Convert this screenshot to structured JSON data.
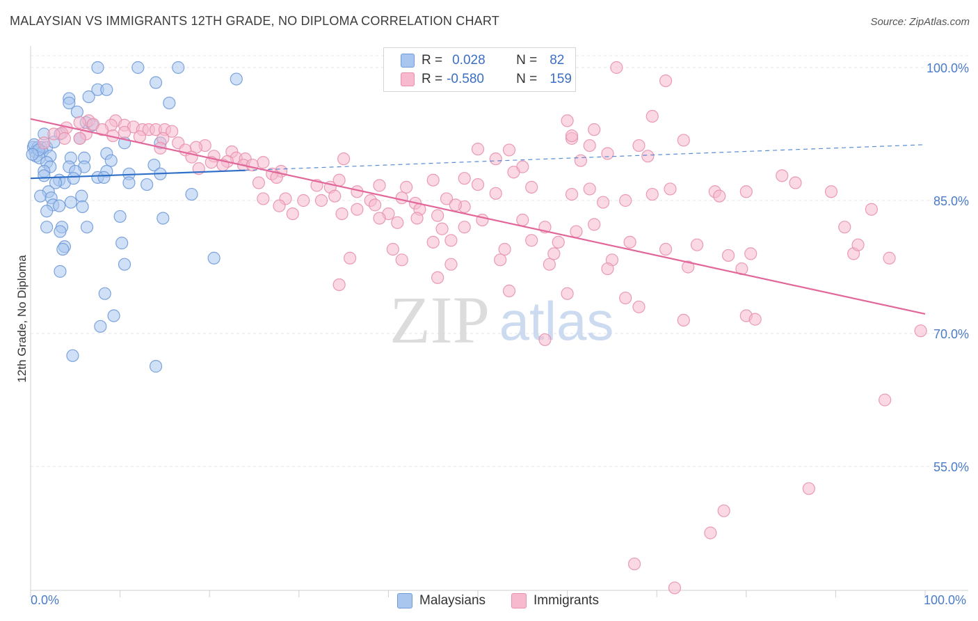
{
  "title": "MALAYSIAN VS IMMIGRANTS 12TH GRADE, NO DIPLOMA CORRELATION CHART",
  "source": "Source: ZipAtlas.com",
  "watermark": {
    "zip": "ZIP",
    "atlas": "atlas"
  },
  "legend": {
    "rows": [
      {
        "r_label": "R =",
        "r_value": "0.028",
        "n_label": "N =",
        "n_value": "82",
        "color": "#a9c6ef",
        "border": "#6f9ad8"
      },
      {
        "r_label": "R =",
        "r_value": "-0.580",
        "n_label": "N =",
        "n_value": "159",
        "color": "#f6b9cd",
        "border": "#e890ad"
      }
    ]
  },
  "bottom_legend": [
    {
      "label": "Malaysians",
      "color": "#a9c6ef",
      "border": "#6f9ad8"
    },
    {
      "label": "Immigrants",
      "color": "#f6b9cd",
      "border": "#e890ad"
    }
  ],
  "chart_data": {
    "type": "scatter",
    "title": "MALAYSIAN VS IMMIGRANTS 12TH GRADE, NO DIPLOMA CORRELATION CHART",
    "xlabel": "",
    "ylabel": "12th Grade, No Diploma",
    "xlim": [
      0,
      100
    ],
    "ylim": [
      40,
      102
    ],
    "x_tick_labels": [
      "0.0%",
      "100.0%"
    ],
    "y_ticks": [
      100,
      85,
      70,
      55
    ],
    "y_tick_labels": [
      "100.0%",
      "85.0%",
      "70.0%",
      "55.0%"
    ],
    "grid": true,
    "legend_position": "top-center",
    "series": [
      {
        "name": "Malaysians",
        "color": "#6f9ad8",
        "fill": "#a9c6ef",
        "trend": {
          "x": [
            0,
            24
          ],
          "y": [
            87.5,
            88.4
          ],
          "x_dashed_to": 100,
          "y_dashed_to": 91.3,
          "color": "#2e6fc8"
        },
        "points": [
          [
            7.5,
            100
          ],
          [
            12,
            100
          ],
          [
            16.5,
            100
          ],
          [
            23,
            98.7
          ],
          [
            14,
            98.3
          ],
          [
            7.5,
            97.5
          ],
          [
            8.5,
            97.5
          ],
          [
            6.5,
            96.7
          ],
          [
            4.3,
            96.5
          ],
          [
            4.3,
            96
          ],
          [
            15.5,
            96
          ],
          [
            5.2,
            95
          ],
          [
            1.5,
            92.5
          ],
          [
            3.3,
            92.5
          ],
          [
            5.5,
            92
          ],
          [
            14.5,
            91.5
          ],
          [
            10.5,
            91.5
          ],
          [
            0.3,
            91
          ],
          [
            0.8,
            91
          ],
          [
            1.2,
            91
          ],
          [
            1.8,
            91
          ],
          [
            0.5,
            90.5
          ],
          [
            1.3,
            90.5
          ],
          [
            2.2,
            90
          ],
          [
            8.5,
            90.3
          ],
          [
            0.6,
            90
          ],
          [
            1,
            89.8
          ],
          [
            4.5,
            89.8
          ],
          [
            6,
            89.8
          ],
          [
            9,
            89.5
          ],
          [
            1.8,
            89.3
          ],
          [
            2.2,
            88.8
          ],
          [
            4.3,
            88.8
          ],
          [
            6,
            88.8
          ],
          [
            13.8,
            89
          ],
          [
            1.5,
            88.3
          ],
          [
            5,
            88.3
          ],
          [
            8.5,
            88.3
          ],
          [
            11,
            88
          ],
          [
            14.5,
            88
          ],
          [
            1.5,
            87.8
          ],
          [
            7.5,
            87.6
          ],
          [
            8.2,
            87.6
          ],
          [
            3.2,
            87.3
          ],
          [
            3.8,
            87
          ],
          [
            4.8,
            87.5
          ],
          [
            2.8,
            87
          ],
          [
            11,
            87
          ],
          [
            13,
            86.8
          ],
          [
            2,
            86
          ],
          [
            1.1,
            85.5
          ],
          [
            2.3,
            85.3
          ],
          [
            5.7,
            85.5
          ],
          [
            18,
            85.7
          ],
          [
            4.5,
            84.8
          ],
          [
            2.5,
            84.5
          ],
          [
            3.2,
            84.4
          ],
          [
            5.8,
            84.3
          ],
          [
            1.8,
            83.8
          ],
          [
            10,
            83.2
          ],
          [
            14.8,
            83
          ],
          [
            1.8,
            82
          ],
          [
            3.5,
            82
          ],
          [
            6.3,
            82
          ],
          [
            3.3,
            81.5
          ],
          [
            10.2,
            80.2
          ],
          [
            3.8,
            79.8
          ],
          [
            3.6,
            79.5
          ],
          [
            20.5,
            78.5
          ],
          [
            10.5,
            77.8
          ],
          [
            3.3,
            77
          ],
          [
            8.3,
            74.5
          ],
          [
            9.3,
            72
          ],
          [
            7.8,
            70.8
          ],
          [
            4.7,
            67.5
          ],
          [
            14,
            66.3
          ],
          [
            0.4,
            91.3
          ],
          [
            0.9,
            90.7
          ],
          [
            0.2,
            90.2
          ],
          [
            2.6,
            91.6
          ],
          [
            6.9,
            93.5
          ],
          [
            6.2,
            93.8
          ]
        ]
      },
      {
        "name": "Immigrants",
        "color": "#e890ad",
        "fill": "#f6b9cd",
        "trend": {
          "x": [
            0,
            100
          ],
          "y": [
            94.2,
            72.2
          ],
          "color": "#e2669a"
        },
        "points": [
          [
            65.5,
            100
          ],
          [
            71,
            98.5
          ],
          [
            69.5,
            94.5
          ],
          [
            60,
            94
          ],
          [
            6.5,
            94
          ],
          [
            9.5,
            94
          ],
          [
            5.5,
            93.8
          ],
          [
            7,
            93.6
          ],
          [
            9,
            93.5
          ],
          [
            10.5,
            93.5
          ],
          [
            11.5,
            93.3
          ],
          [
            4,
            93.2
          ],
          [
            8,
            93
          ],
          [
            12.5,
            93
          ],
          [
            13.2,
            93
          ],
          [
            14,
            93
          ],
          [
            15,
            93
          ],
          [
            15.8,
            92.8
          ],
          [
            10.5,
            92.7
          ],
          [
            3.5,
            92.6
          ],
          [
            2.6,
            92.5
          ],
          [
            6.2,
            92.5
          ],
          [
            9.2,
            92.3
          ],
          [
            12.2,
            92.2
          ],
          [
            14.8,
            92
          ],
          [
            5.5,
            92
          ],
          [
            3.8,
            92
          ],
          [
            1.5,
            91.5
          ],
          [
            16.5,
            91.5
          ],
          [
            60.5,
            92
          ],
          [
            73,
            91.8
          ],
          [
            62.5,
            91.2
          ],
          [
            19.5,
            91.2
          ],
          [
            18.5,
            91
          ],
          [
            14.5,
            90.9
          ],
          [
            50,
            90.8
          ],
          [
            53.5,
            90.7
          ],
          [
            17.3,
            90.7
          ],
          [
            22.5,
            90.5
          ],
          [
            64.5,
            90.3
          ],
          [
            69,
            90
          ],
          [
            20.5,
            90
          ],
          [
            18,
            89.9
          ],
          [
            23,
            89.8
          ],
          [
            24,
            89.7
          ],
          [
            52,
            89.7
          ],
          [
            35,
            89.7
          ],
          [
            61.5,
            89.5
          ],
          [
            22,
            89.4
          ],
          [
            26,
            89.3
          ],
          [
            20.2,
            89.3
          ],
          [
            21.5,
            89
          ],
          [
            23.8,
            89
          ],
          [
            24.8,
            89
          ],
          [
            55,
            88.8
          ],
          [
            18.8,
            88.6
          ],
          [
            28,
            88.3
          ],
          [
            54,
            88.2
          ],
          [
            27,
            88
          ],
          [
            27.5,
            87.6
          ],
          [
            48.5,
            87.5
          ],
          [
            45,
            87.3
          ],
          [
            34.5,
            87.3
          ],
          [
            32,
            86.7
          ],
          [
            50,
            86.8
          ],
          [
            39,
            86.7
          ],
          [
            25.5,
            87
          ],
          [
            33.5,
            86.5
          ],
          [
            42,
            86.5
          ],
          [
            56,
            86.5
          ],
          [
            76.5,
            86
          ],
          [
            62.5,
            86.3
          ],
          [
            71.5,
            86.3
          ],
          [
            80,
            86
          ],
          [
            36.5,
            86
          ],
          [
            34,
            85.5
          ],
          [
            52,
            85.8
          ],
          [
            60.5,
            85.7
          ],
          [
            69.5,
            85.7
          ],
          [
            46.5,
            85.2
          ],
          [
            41.5,
            85.3
          ],
          [
            28.5,
            85.2
          ],
          [
            77,
            85.5
          ],
          [
            30.5,
            85
          ],
          [
            32.5,
            85
          ],
          [
            38,
            85
          ],
          [
            26,
            85.2
          ],
          [
            64,
            84.8
          ],
          [
            66.5,
            85
          ],
          [
            43,
            84.7
          ],
          [
            48.5,
            84.3
          ],
          [
            38.5,
            84.5
          ],
          [
            47.5,
            84.5
          ],
          [
            36.5,
            84
          ],
          [
            34.8,
            83.5
          ],
          [
            43.5,
            84
          ],
          [
            29.3,
            83.5
          ],
          [
            27.8,
            84.4
          ],
          [
            40,
            83.5
          ],
          [
            45.5,
            83.3
          ],
          [
            39,
            83
          ],
          [
            41,
            82.5
          ],
          [
            43.2,
            83
          ],
          [
            50.5,
            82.8
          ],
          [
            55,
            82.8
          ],
          [
            57.5,
            82
          ],
          [
            63,
            82.3
          ],
          [
            61,
            81.5
          ],
          [
            48.5,
            82
          ],
          [
            46,
            81.8
          ],
          [
            47,
            80.5
          ],
          [
            45,
            80.3
          ],
          [
            59,
            80.3
          ],
          [
            67,
            80.3
          ],
          [
            74.5,
            80
          ],
          [
            40.5,
            79.5
          ],
          [
            53,
            79.5
          ],
          [
            71,
            79.5
          ],
          [
            52.5,
            78.3
          ],
          [
            65,
            78.3
          ],
          [
            78,
            78.8
          ],
          [
            80.5,
            79
          ],
          [
            35.7,
            78.5
          ],
          [
            41.5,
            78.3
          ],
          [
            47,
            77.8
          ],
          [
            58,
            77.8
          ],
          [
            64.5,
            77.3
          ],
          [
            73.5,
            77.5
          ],
          [
            79.5,
            77.3
          ],
          [
            45.5,
            76.3
          ],
          [
            34.5,
            75.5
          ],
          [
            60,
            74.5
          ],
          [
            66.5,
            74
          ],
          [
            53.5,
            74.8
          ],
          [
            68,
            73
          ],
          [
            80,
            72
          ],
          [
            81,
            71.6
          ],
          [
            73,
            71.5
          ],
          [
            57.5,
            69.3
          ],
          [
            99.5,
            70.3
          ],
          [
            95.5,
            62.5
          ],
          [
            87,
            52.5
          ],
          [
            77.5,
            50
          ],
          [
            76,
            47.5
          ],
          [
            67.5,
            44
          ],
          [
            72,
            41.3
          ],
          [
            92,
            79
          ],
          [
            96,
            78.5
          ],
          [
            92.5,
            80
          ],
          [
            85.5,
            87
          ],
          [
            89.5,
            86
          ],
          [
            94,
            84
          ],
          [
            84,
            87.8
          ],
          [
            56,
            80.5
          ],
          [
            58.5,
            79
          ],
          [
            91,
            82
          ],
          [
            60.5,
            92.3
          ],
          [
            63,
            93
          ],
          [
            68,
            91.2
          ]
        ]
      }
    ]
  }
}
